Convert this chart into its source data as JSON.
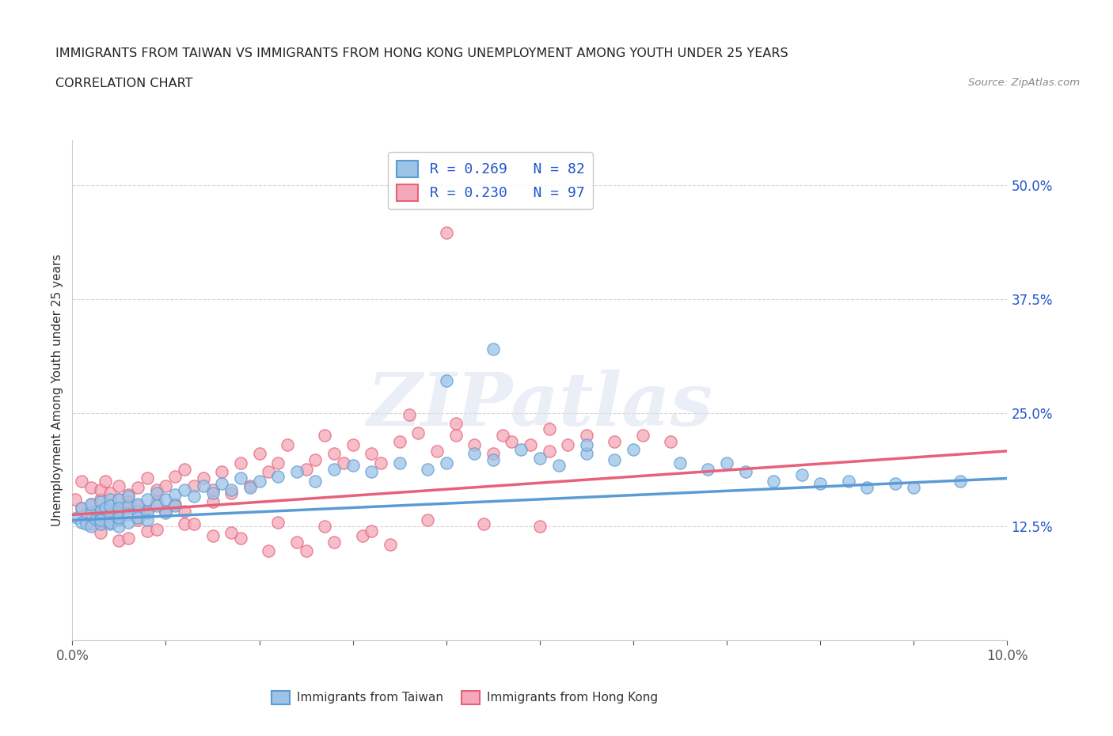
{
  "title_line1": "IMMIGRANTS FROM TAIWAN VS IMMIGRANTS FROM HONG KONG UNEMPLOYMENT AMONG YOUTH UNDER 25 YEARS",
  "title_line2": "CORRELATION CHART",
  "source": "Source: ZipAtlas.com",
  "ylabel": "Unemployment Among Youth under 25 years",
  "xlim": [
    0.0,
    0.1
  ],
  "ylim": [
    0.0,
    0.55
  ],
  "yticks": [
    0.125,
    0.25,
    0.375,
    0.5
  ],
  "ytick_labels": [
    "12.5%",
    "25.0%",
    "37.5%",
    "50.0%"
  ],
  "xticks": [
    0.0,
    0.01,
    0.02,
    0.03,
    0.04,
    0.05,
    0.06,
    0.07,
    0.08,
    0.09,
    0.1
  ],
  "xtick_labels": [
    "0.0%",
    "",
    "",
    "",
    "",
    "",
    "",
    "",
    "",
    "",
    "10.0%"
  ],
  "taiwan_color": "#5b9bd5",
  "taiwan_color_fill": "#9dc3e6",
  "hk_color": "#e8607a",
  "hk_color_fill": "#f4a8b8",
  "legend_R_taiwan": "0.269",
  "legend_N_taiwan": "82",
  "legend_R_hk": "0.230",
  "legend_N_hk": "97",
  "watermark": "ZIPatlas",
  "taiwan_x": [
    0.0005,
    0.001,
    0.001,
    0.0015,
    0.002,
    0.002,
    0.002,
    0.0025,
    0.003,
    0.003,
    0.003,
    0.003,
    0.003,
    0.0035,
    0.004,
    0.004,
    0.004,
    0.004,
    0.004,
    0.005,
    0.005,
    0.005,
    0.005,
    0.005,
    0.005,
    0.006,
    0.006,
    0.006,
    0.006,
    0.007,
    0.007,
    0.007,
    0.008,
    0.008,
    0.008,
    0.009,
    0.009,
    0.01,
    0.01,
    0.011,
    0.011,
    0.012,
    0.013,
    0.014,
    0.015,
    0.016,
    0.017,
    0.018,
    0.019,
    0.02,
    0.022,
    0.024,
    0.026,
    0.028,
    0.03,
    0.032,
    0.035,
    0.038,
    0.04,
    0.043,
    0.045,
    0.048,
    0.05,
    0.052,
    0.055,
    0.058,
    0.06,
    0.065,
    0.068,
    0.07,
    0.072,
    0.075,
    0.078,
    0.08,
    0.083,
    0.085,
    0.088,
    0.09,
    0.04,
    0.045,
    0.055,
    0.095
  ],
  "taiwan_y": [
    0.135,
    0.13,
    0.145,
    0.128,
    0.14,
    0.125,
    0.15,
    0.133,
    0.138,
    0.128,
    0.152,
    0.142,
    0.132,
    0.145,
    0.138,
    0.128,
    0.155,
    0.13,
    0.148,
    0.14,
    0.132,
    0.155,
    0.125,
    0.145,
    0.135,
    0.148,
    0.138,
    0.13,
    0.158,
    0.142,
    0.135,
    0.15,
    0.155,
    0.14,
    0.132,
    0.148,
    0.162,
    0.155,
    0.14,
    0.16,
    0.148,
    0.165,
    0.158,
    0.17,
    0.162,
    0.172,
    0.165,
    0.178,
    0.168,
    0.175,
    0.18,
    0.185,
    0.175,
    0.188,
    0.192,
    0.185,
    0.195,
    0.188,
    0.195,
    0.205,
    0.198,
    0.21,
    0.2,
    0.192,
    0.205,
    0.198,
    0.21,
    0.195,
    0.188,
    0.195,
    0.185,
    0.175,
    0.182,
    0.172,
    0.175,
    0.168,
    0.172,
    0.168,
    0.285,
    0.32,
    0.215,
    0.175
  ],
  "hk_x": [
    0.0003,
    0.001,
    0.001,
    0.0015,
    0.002,
    0.002,
    0.002,
    0.0025,
    0.003,
    0.003,
    0.003,
    0.003,
    0.0035,
    0.004,
    0.004,
    0.004,
    0.005,
    0.005,
    0.005,
    0.005,
    0.006,
    0.006,
    0.006,
    0.007,
    0.007,
    0.007,
    0.008,
    0.008,
    0.009,
    0.009,
    0.01,
    0.01,
    0.011,
    0.011,
    0.012,
    0.012,
    0.013,
    0.014,
    0.015,
    0.015,
    0.016,
    0.017,
    0.018,
    0.019,
    0.02,
    0.021,
    0.022,
    0.023,
    0.025,
    0.026,
    0.027,
    0.028,
    0.029,
    0.03,
    0.032,
    0.033,
    0.035,
    0.037,
    0.039,
    0.041,
    0.043,
    0.045,
    0.047,
    0.049,
    0.051,
    0.053,
    0.025,
    0.028,
    0.031,
    0.034,
    0.018,
    0.021,
    0.024,
    0.015,
    0.012,
    0.008,
    0.005,
    0.003,
    0.006,
    0.009,
    0.013,
    0.017,
    0.022,
    0.027,
    0.032,
    0.038,
    0.044,
    0.05,
    0.036,
    0.041,
    0.046,
    0.051,
    0.055,
    0.058,
    0.061,
    0.064,
    0.04
  ],
  "hk_y": [
    0.155,
    0.145,
    0.175,
    0.138,
    0.15,
    0.128,
    0.168,
    0.142,
    0.155,
    0.132,
    0.165,
    0.13,
    0.175,
    0.145,
    0.162,
    0.132,
    0.155,
    0.14,
    0.17,
    0.132,
    0.16,
    0.145,
    0.152,
    0.168,
    0.132,
    0.148,
    0.178,
    0.142,
    0.165,
    0.152,
    0.17,
    0.142,
    0.18,
    0.15,
    0.188,
    0.142,
    0.17,
    0.178,
    0.165,
    0.152,
    0.185,
    0.162,
    0.195,
    0.17,
    0.205,
    0.185,
    0.195,
    0.215,
    0.188,
    0.198,
    0.225,
    0.205,
    0.195,
    0.215,
    0.205,
    0.195,
    0.218,
    0.228,
    0.208,
    0.225,
    0.215,
    0.205,
    0.218,
    0.215,
    0.208,
    0.215,
    0.098,
    0.108,
    0.115,
    0.105,
    0.112,
    0.098,
    0.108,
    0.115,
    0.128,
    0.12,
    0.11,
    0.118,
    0.112,
    0.122,
    0.128,
    0.118,
    0.13,
    0.125,
    0.12,
    0.132,
    0.128,
    0.125,
    0.248,
    0.238,
    0.225,
    0.232,
    0.225,
    0.218,
    0.225,
    0.218,
    0.448
  ],
  "taiwan_trend_x": [
    0.0,
    0.1
  ],
  "taiwan_trend_y": [
    0.132,
    0.178
  ],
  "hk_trend_x": [
    0.0,
    0.1
  ],
  "hk_trend_y": [
    0.138,
    0.208
  ],
  "grid_color": "#cccccc",
  "bg_color": "#ffffff",
  "title_color": "#333333",
  "tick_color": "#2255cc"
}
